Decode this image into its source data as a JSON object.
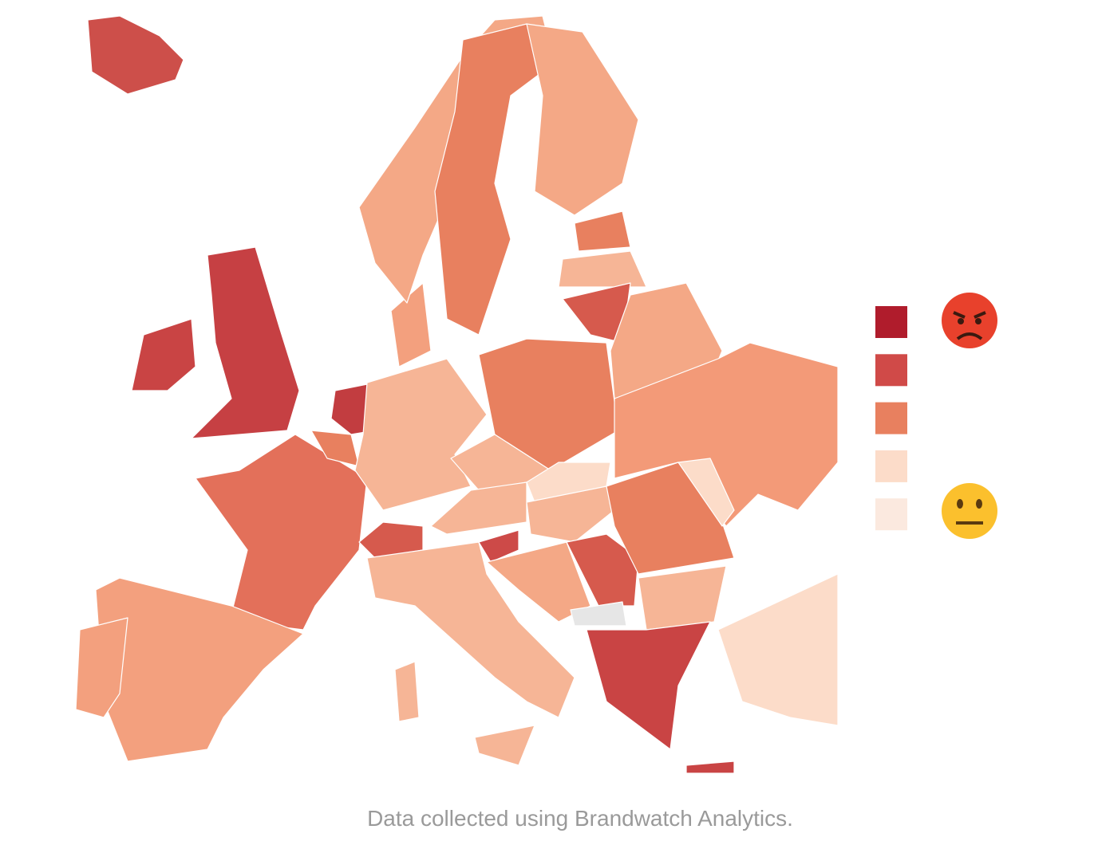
{
  "caption": "Data collected using Brandwatch Analytics.",
  "legend": {
    "colors": [
      "#b01c2c",
      "#d04a48",
      "#e8805f",
      "#fcdcc9",
      "#fbe9df"
    ]
  }
}
